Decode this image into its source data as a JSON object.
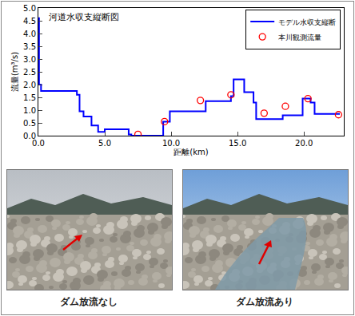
{
  "chart_data": {
    "type": "line",
    "title": "河道水収支縦断図",
    "x_label": "距離(km)",
    "y_label": "流量(m³/s)",
    "xlim": [
      0,
      23
    ],
    "xticks": [
      {
        "value": 0,
        "label": "0.0"
      },
      {
        "value": 5,
        "label": "5.0"
      },
      {
        "value": 10,
        "label": "10.0"
      },
      {
        "value": 15,
        "label": "15.0"
      },
      {
        "value": 20,
        "label": "20.0"
      }
    ],
    "ylim": [
      0,
      5
    ],
    "yticks": [
      {
        "value": 0,
        "label": "0.0"
      },
      {
        "value": 0.5,
        "label": "0.5"
      },
      {
        "value": 1,
        "label": "1.0"
      },
      {
        "value": 1.5,
        "label": "1.5"
      },
      {
        "value": 2,
        "label": "2.0"
      },
      {
        "value": 2.5,
        "label": "2.5"
      },
      {
        "value": 3,
        "label": "3.0"
      },
      {
        "value": 3.5,
        "label": "3.5"
      },
      {
        "value": 4,
        "label": "4.0"
      },
      {
        "value": 4.5,
        "label": "4.5"
      },
      {
        "value": 5,
        "label": "5.0"
      }
    ],
    "grid": false,
    "legend": "upper right",
    "series": [
      {
        "name": "モデル水収支縦断",
        "type": "line",
        "line_style": "step",
        "color": "#0000ff",
        "x": [
          0,
          0.05,
          0.2,
          2.9,
          3.1,
          3.4,
          4.0,
          4.5,
          5.0,
          6.8,
          7.0,
          9.4,
          9.9,
          12.6,
          14.5,
          14.7,
          15.5,
          16.2,
          16.4,
          18.4,
          19.9,
          20.5,
          20.8,
          22.7
        ],
        "values": [
          4.6,
          2.0,
          1.75,
          1.6,
          0.95,
          0.75,
          0.4,
          0.15,
          0.25,
          0.05,
          0.0,
          0.55,
          0.95,
          1.35,
          1.55,
          2.2,
          1.7,
          1.3,
          0.65,
          0.8,
          1.45,
          1.3,
          0.85,
          0.85
        ]
      },
      {
        "name": "本川観測流量",
        "type": "scatter",
        "marker": "open_circle",
        "color": "#ff0000",
        "x": [
          7.5,
          9.5,
          12.2,
          14.5,
          17.0,
          18.6,
          20.3,
          22.6
        ],
        "values": [
          0.05,
          0.55,
          1.38,
          1.6,
          0.88,
          1.15,
          1.45,
          0.82
        ]
      }
    ]
  },
  "photos": [
    {
      "caption": "ダム放流なし"
    },
    {
      "caption": "ダム放流あり"
    }
  ]
}
